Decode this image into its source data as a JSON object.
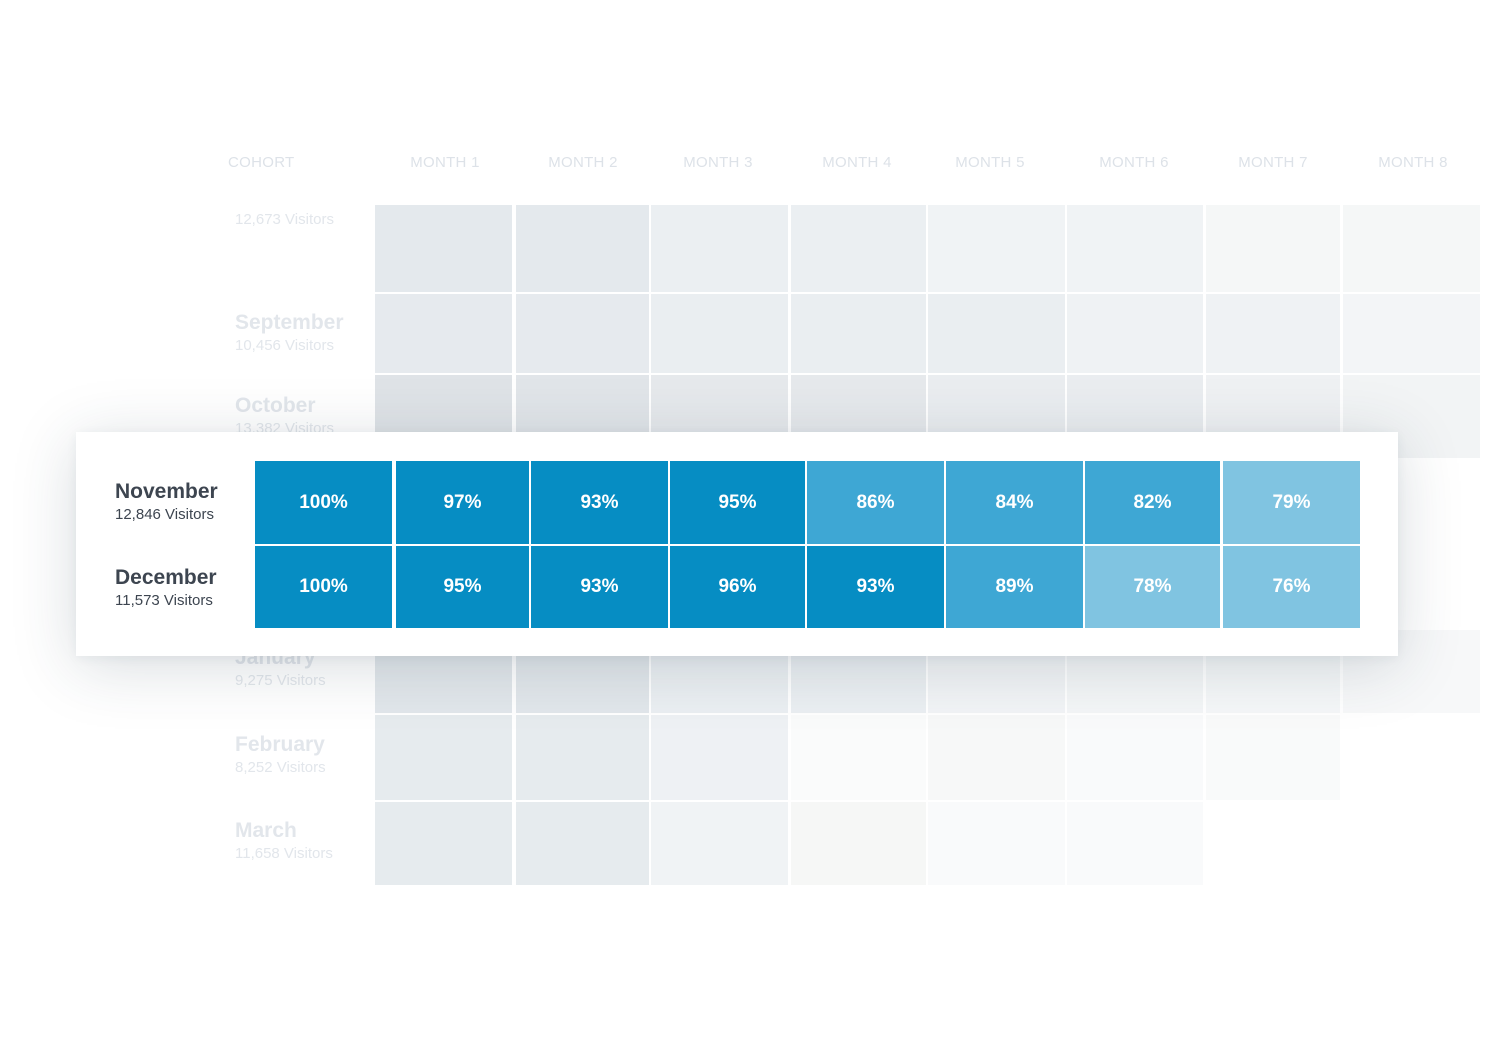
{
  "chart_data": {
    "type": "heatmap",
    "columns": [
      "COHORT",
      "MONTH 1",
      "MONTH 2",
      "MONTH 3",
      "MONTH 4",
      "MONTH 5",
      "MONTH 6",
      "MONTH 7",
      "MONTH 8"
    ],
    "faded_rows": [
      {
        "month": "",
        "visitors": "12,673 Visitors",
        "cells": 8
      },
      {
        "month": "September",
        "visitors": "10,456 Visitors",
        "cells": 8
      },
      {
        "month": "October",
        "visitors": "13,382 Visitors",
        "cells": 8
      },
      {
        "month": "January",
        "visitors": "9,275 Visitors",
        "cells": 8
      },
      {
        "month": "February",
        "visitors": "8,252 Visitors",
        "cells": 7
      },
      {
        "month": "March",
        "visitors": "11,658 Visitors",
        "cells": 6
      }
    ],
    "highlighted_rows": [
      {
        "month": "November",
        "visitors": "12,846 Visitors",
        "values": [
          "100%",
          "97%",
          "93%",
          "95%",
          "86%",
          "84%",
          "82%",
          "79%"
        ]
      },
      {
        "month": "December",
        "visitors": "11,573 Visitors",
        "values": [
          "100%",
          "95%",
          "93%",
          "96%",
          "93%",
          "89%",
          "78%",
          "76%"
        ]
      }
    ],
    "colors": {
      "high": "#068dc3",
      "mid": "#3ea7d4",
      "low": "#80c4e1",
      "faded": "#e5eaee",
      "card_text": "#3d4550",
      "faded_text": "#e2e6eb"
    }
  }
}
